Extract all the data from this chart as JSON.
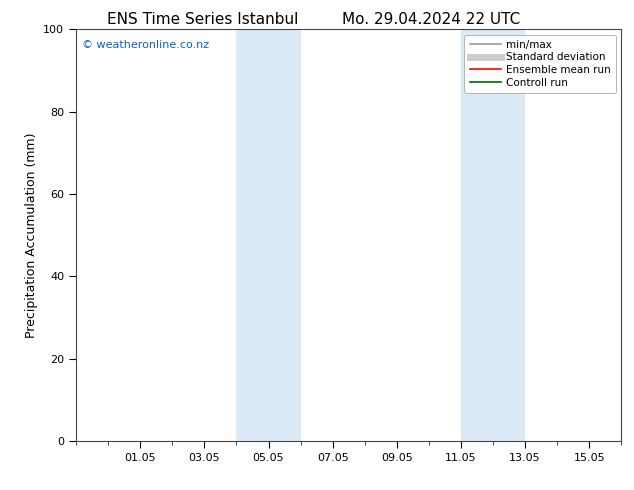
{
  "title_left": "ENS Time Series Istanbul",
  "title_right": "Mo. 29.04.2024 22 UTC",
  "ylabel": "Precipitation Accumulation (mm)",
  "ylim": [
    0,
    100
  ],
  "yticks": [
    0,
    20,
    40,
    60,
    80,
    100
  ],
  "background_color": "#ffffff",
  "shade_regions": [
    {
      "x_start": 5.0,
      "x_end": 7.0,
      "color": "#daeaf7"
    },
    {
      "x_start": 12.0,
      "x_end": 14.0,
      "color": "#daeaf7"
    }
  ],
  "xtick_labels": [
    "01.05",
    "03.05",
    "05.05",
    "07.05",
    "09.05",
    "11.05",
    "13.05",
    "15.05"
  ],
  "xtick_positions": [
    2,
    4,
    6,
    8,
    10,
    12,
    14,
    16
  ],
  "x_min": 0,
  "x_max": 17,
  "watermark_text": "© weatheronline.co.nz",
  "watermark_color": "#1060c0",
  "legend_items": [
    {
      "label": "min/max",
      "color": "#999999",
      "lw": 1.2
    },
    {
      "label": "Standard deviation",
      "color": "#cccccc",
      "lw": 5.0
    },
    {
      "label": "Ensemble mean run",
      "color": "#ff0000",
      "lw": 1.2
    },
    {
      "label": "Controll run",
      "color": "#006600",
      "lw": 1.2
    }
  ],
  "title_fontsize": 11,
  "ylabel_fontsize": 9,
  "tick_fontsize": 8,
  "watermark_fontsize": 8,
  "legend_fontsize": 7.5
}
